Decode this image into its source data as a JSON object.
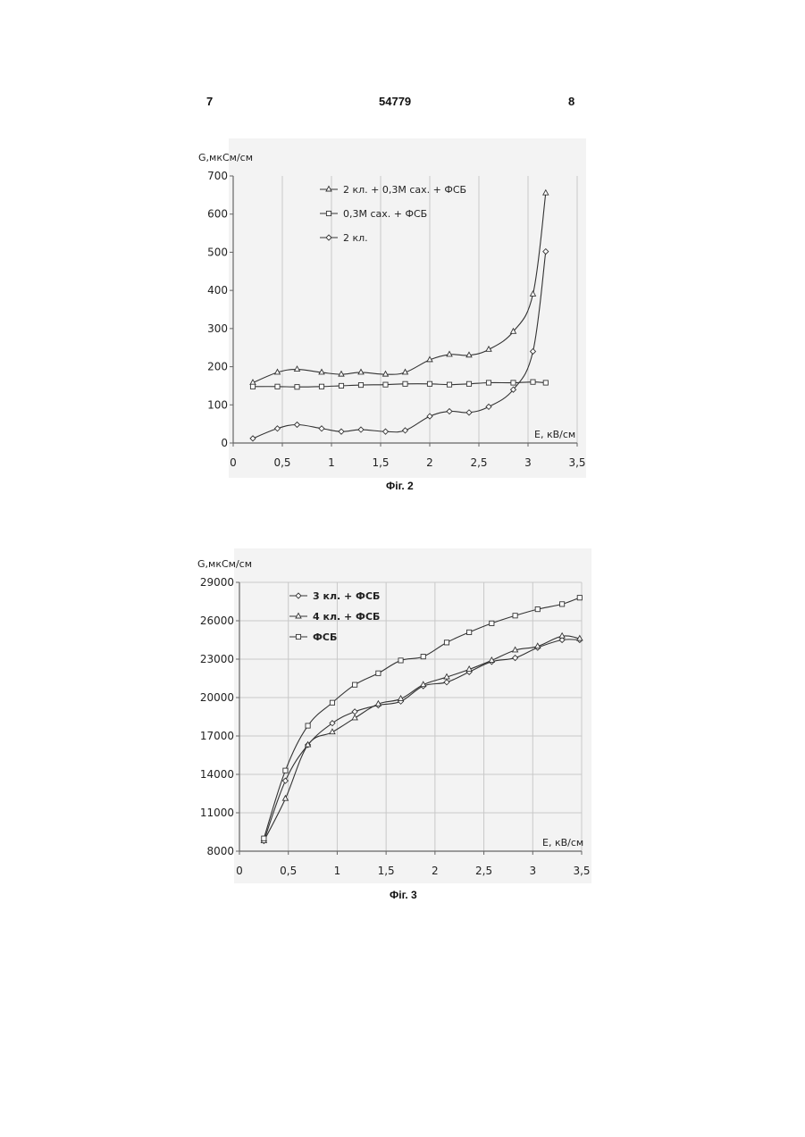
{
  "header": {
    "left": "7",
    "center": "54779",
    "right": "8"
  },
  "chart_data": [
    {
      "type": "line",
      "caption": "Фіг. 2",
      "ylabel": "G,мкСм/см",
      "xlabel": "E, кВ/см",
      "xlim": [
        0,
        3.5
      ],
      "ylim": [
        0,
        700
      ],
      "xticks": [
        "0",
        "0,5",
        "1",
        "1,5",
        "2",
        "2,5",
        "3",
        "3,5"
      ],
      "yticks": [
        "0",
        "100",
        "200",
        "300",
        "400",
        "500",
        "600",
        "700"
      ],
      "grid": "vertical",
      "legend_position": "top-left",
      "series": [
        {
          "name": "2 кл. + 0,3М сах. + ФСБ",
          "marker": "triangle",
          "x": [
            0.2,
            0.45,
            0.65,
            0.9,
            1.1,
            1.3,
            1.55,
            1.75,
            2.0,
            2.2,
            2.4,
            2.6,
            2.85,
            3.05,
            3.18
          ],
          "y": [
            158,
            185,
            193,
            185,
            180,
            185,
            180,
            185,
            218,
            232,
            230,
            245,
            292,
            390,
            655
          ]
        },
        {
          "name": "0,3М сах. + ФСБ",
          "marker": "square",
          "x": [
            0.2,
            0.45,
            0.65,
            0.9,
            1.1,
            1.3,
            1.55,
            1.75,
            2.0,
            2.2,
            2.4,
            2.6,
            2.85,
            3.05,
            3.18
          ],
          "y": [
            148,
            148,
            147,
            148,
            150,
            152,
            153,
            155,
            155,
            153,
            155,
            158,
            158,
            160,
            158
          ]
        },
        {
          "name": "2 кл.",
          "marker": "diamond",
          "x": [
            0.2,
            0.45,
            0.65,
            0.9,
            1.1,
            1.3,
            1.55,
            1.75,
            2.0,
            2.2,
            2.4,
            2.6,
            2.85,
            3.05,
            3.18
          ],
          "y": [
            12,
            38,
            48,
            38,
            30,
            35,
            30,
            33,
            70,
            83,
            80,
            95,
            140,
            240,
            502
          ]
        }
      ]
    },
    {
      "type": "line",
      "caption": "Фіг. 3",
      "ylabel": "G,мкСм/см",
      "xlabel": "E, кВ/см",
      "xlim": [
        0,
        3.5
      ],
      "ylim": [
        8000,
        29000
      ],
      "xticks": [
        "0",
        "0,5",
        "1",
        "1,5",
        "2",
        "2,5",
        "3",
        "3,5"
      ],
      "yticks": [
        "8000",
        "11000",
        "14000",
        "17000",
        "20000",
        "23000",
        "26000",
        "29000"
      ],
      "grid": "both",
      "legend_position": "top-left",
      "series": [
        {
          "name": "3 кл. + ФСБ",
          "marker": "diamond",
          "x": [
            0.25,
            0.47,
            0.7,
            0.95,
            1.18,
            1.42,
            1.65,
            1.88,
            2.12,
            2.35,
            2.58,
            2.82,
            3.05,
            3.3,
            3.48
          ],
          "y": [
            8800,
            13500,
            16300,
            18000,
            18900,
            19400,
            19700,
            20900,
            21200,
            22000,
            22800,
            23100,
            23900,
            24500,
            24500
          ]
        },
        {
          "name": "4 кл. + ФСБ",
          "marker": "triangle",
          "x": [
            0.25,
            0.47,
            0.7,
            0.95,
            1.18,
            1.42,
            1.65,
            1.88,
            2.12,
            2.35,
            2.58,
            2.82,
            3.05,
            3.3,
            3.48
          ],
          "y": [
            8800,
            12100,
            16300,
            17300,
            18400,
            19500,
            19900,
            21000,
            21600,
            22200,
            22900,
            23700,
            24000,
            24800,
            24600
          ]
        },
        {
          "name": "ФСБ",
          "marker": "square",
          "x": [
            0.25,
            0.47,
            0.7,
            0.95,
            1.18,
            1.42,
            1.65,
            1.88,
            2.12,
            2.35,
            2.58,
            2.82,
            3.05,
            3.3,
            3.48
          ],
          "y": [
            9000,
            14300,
            17800,
            19600,
            21000,
            21900,
            22900,
            23200,
            24300,
            25100,
            25800,
            26400,
            26900,
            27300,
            27800
          ]
        }
      ]
    }
  ]
}
